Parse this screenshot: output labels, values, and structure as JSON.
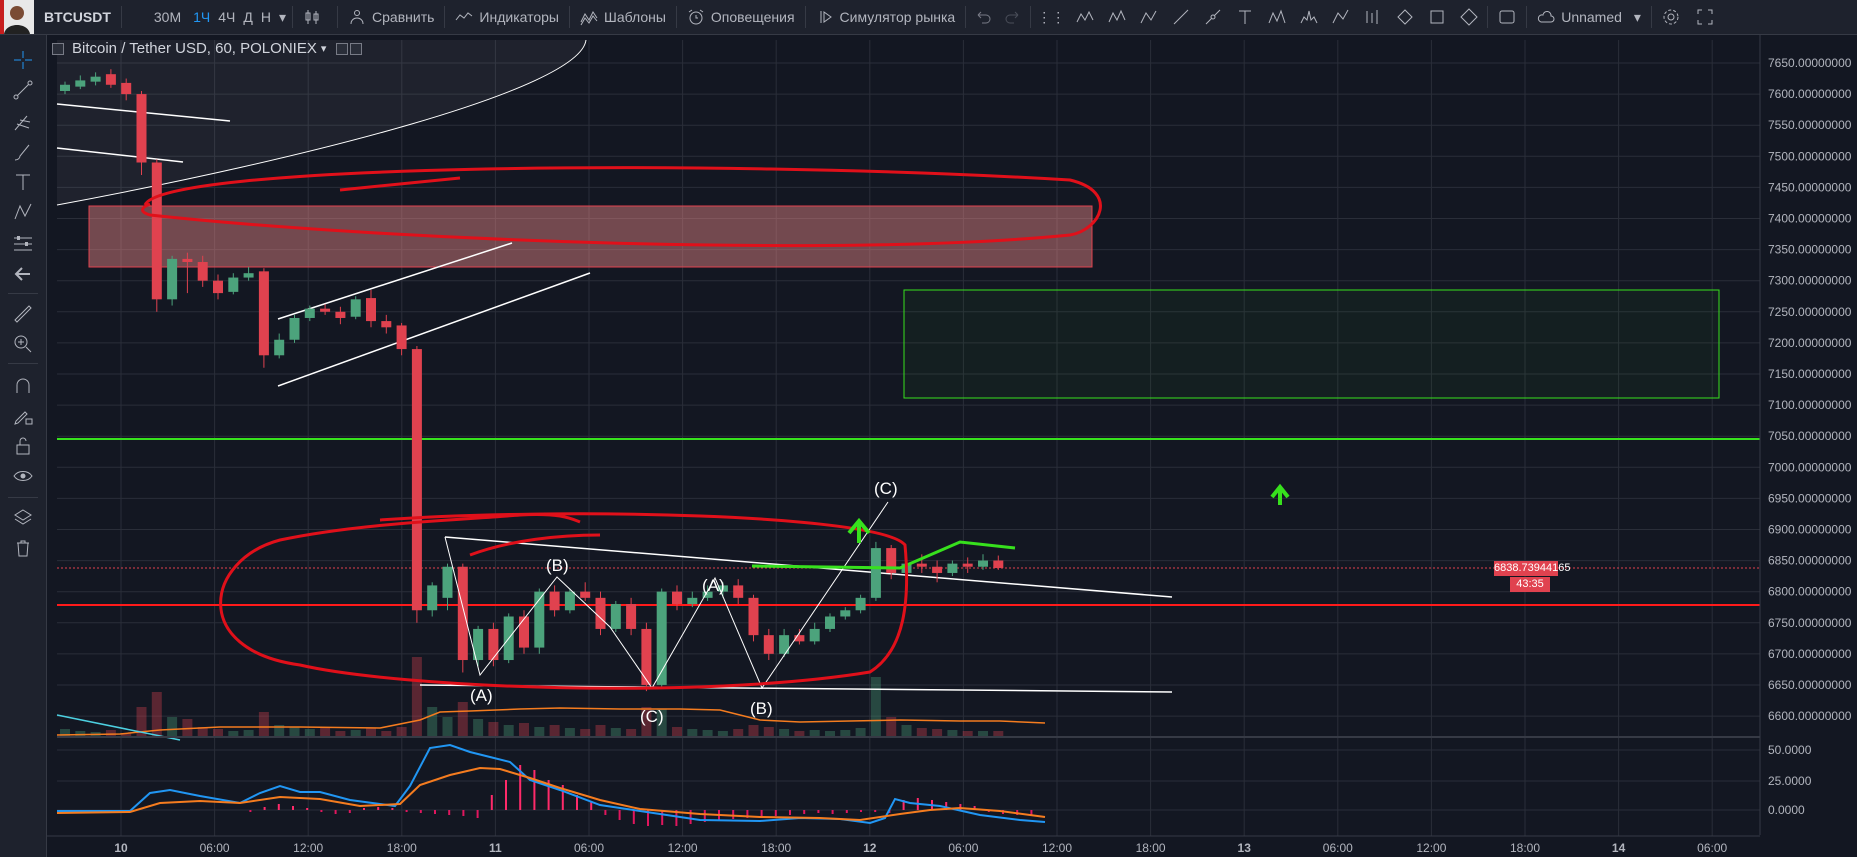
{
  "toolbar": {
    "symbol": "BTCUSDT",
    "intervals": [
      "30М",
      "1Ч",
      "4Ч",
      "Д",
      "Н"
    ],
    "active_interval": "1Ч",
    "compare_label": "Сравнить",
    "indicators_label": "Индикаторы",
    "templates_label": "Шаблоны",
    "alerts_label": "Оповещения",
    "replay_label": "Симулятор рынка",
    "layout_name": "Unnamed"
  },
  "legend": {
    "title": "Bitcoin / Tether USD, 60, POLONIEX"
  },
  "price_axis": {
    "labels": [
      "7650.00000000",
      "7600.00000000",
      "7550.00000000",
      "7500.00000000",
      "7450.00000000",
      "7400.00000000",
      "7350.00000000",
      "7300.00000000",
      "7250.00000000",
      "7200.00000000",
      "7150.00000000",
      "7100.00000000",
      "7050.00000000",
      "7000.00000000",
      "6950.00000000",
      "6900.00000000",
      "6850.00000000",
      "6800.00000000",
      "6750.00000000",
      "6700.00000000",
      "6650.00000000",
      "6600.00000000"
    ],
    "current_price": "6838.73944165",
    "countdown": "43:35"
  },
  "indicator_axis": {
    "labels": [
      "50.0000",
      "25.0000",
      "0.0000"
    ]
  },
  "time_axis": {
    "labels": [
      "10",
      "06:00",
      "12:00",
      "18:00",
      "11",
      "06:00",
      "12:00",
      "18:00",
      "12",
      "06:00",
      "12:00",
      "18:00",
      "13",
      "06:00",
      "12:00",
      "18:00",
      "14",
      "06:00"
    ]
  },
  "annotations": {
    "waves": [
      "(A)",
      "(B)",
      "(C)",
      "(A)",
      "(B)",
      "(C)"
    ]
  },
  "colors": {
    "up": "#4ca37c",
    "down": "#e0424f",
    "accent": "#2196f3",
    "green_line": "#37e11d",
    "red_line": "#ff1a1a"
  }
}
